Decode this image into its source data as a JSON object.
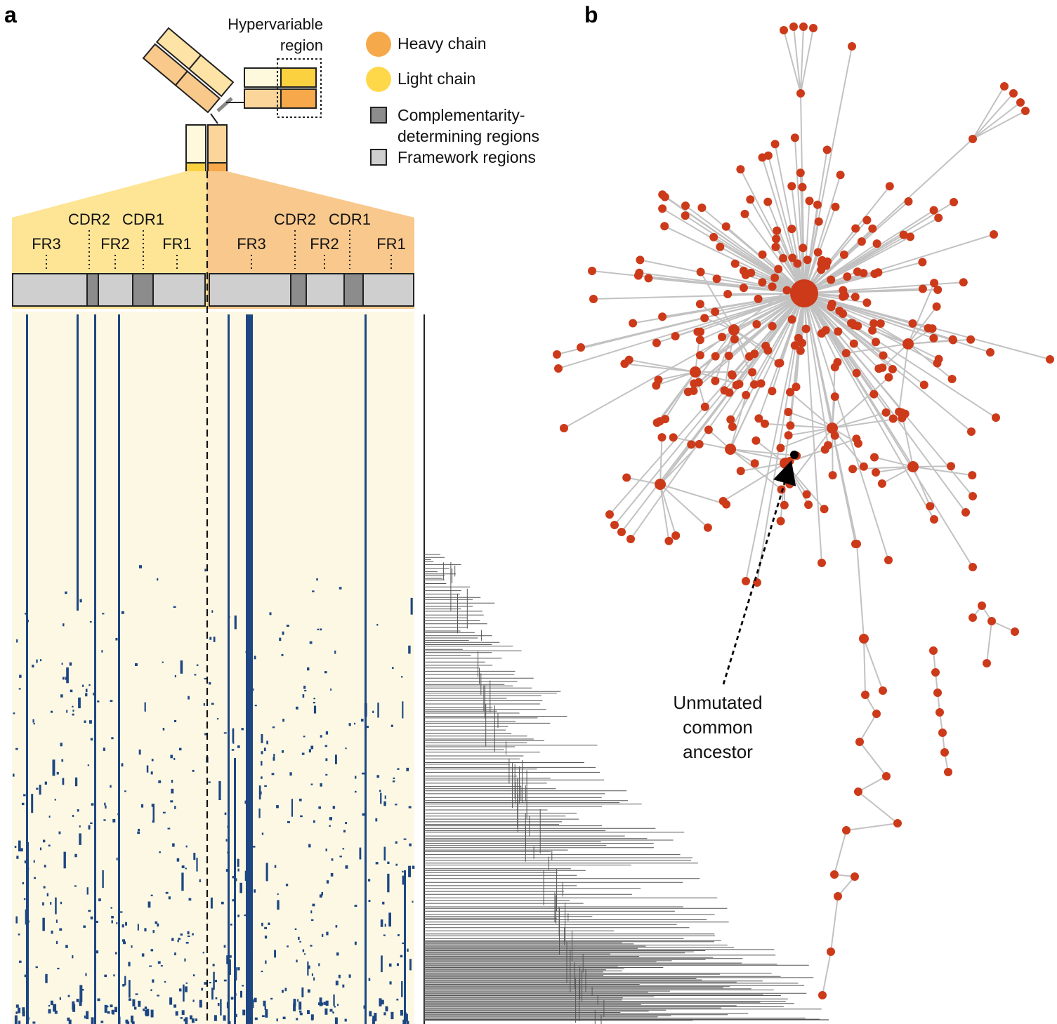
{
  "panels": {
    "a": "a",
    "b": "b"
  },
  "antibody": {
    "hypervariable_label_line1": "Hypervariable",
    "hypervariable_label_line2": "region"
  },
  "legend": {
    "heavy_chain": {
      "label": "Heavy chain",
      "color": "#f5a94a"
    },
    "light_chain": {
      "label": "Light chain",
      "color": "#ffd84a"
    },
    "cdr": {
      "label_line1": "Complementarity-",
      "label_line2": "determining regions",
      "color": "#8c8c8c"
    },
    "fr": {
      "label": "Framework regions",
      "color": "#cfcfcf"
    }
  },
  "regions": {
    "light": [
      "FR3",
      "CDR2",
      "FR2",
      "CDR1",
      "FR1"
    ],
    "heavy": [
      "FR3",
      "CDR2",
      "FR2",
      "CDR1",
      "FR1"
    ]
  },
  "colors": {
    "light_fan": "#fde595",
    "heavy_fan": "#f8c88c",
    "heatmap_bg": "#fcf8e4",
    "mutation": "#1d4683",
    "node": "#cc3a1a",
    "edge": "#c2c2c2",
    "tree": "#555555"
  },
  "ancestor_label": [
    "Unmutated",
    "common",
    "ancestor"
  ]
}
